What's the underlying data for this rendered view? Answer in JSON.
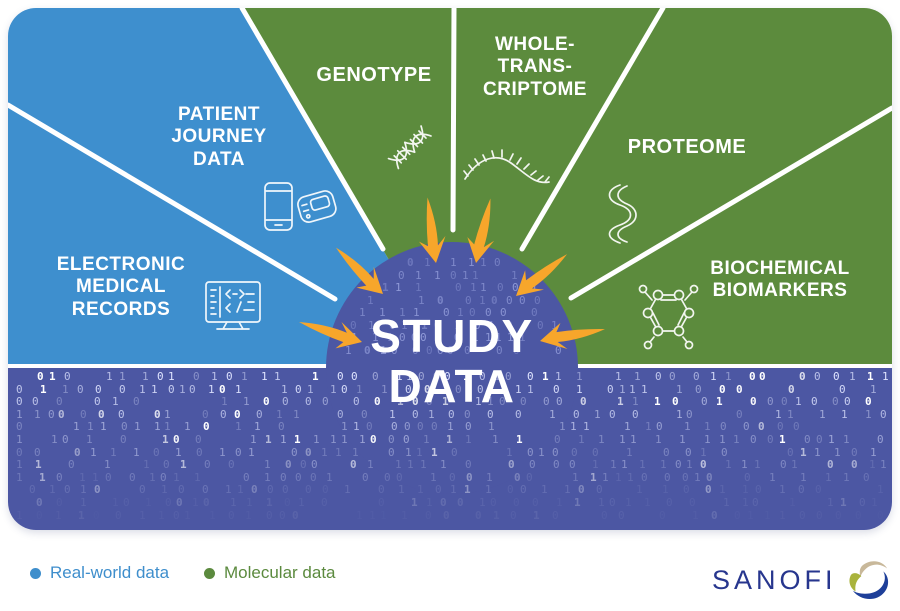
{
  "diagram": {
    "center_label": "STUDY\nDATA",
    "wedges": [
      {
        "id": "electronic-medical-records",
        "label": "ELECTRONIC\nMEDICAL\nRECORDS",
        "category": "real-world",
        "icon": "monitor-code-icon"
      },
      {
        "id": "patient-journey-data",
        "label": "PATIENT\nJOURNEY\nDATA",
        "category": "real-world",
        "icon": "mobile-devices-icon"
      },
      {
        "id": "genotype",
        "label": "GENOTYPE",
        "category": "molecular",
        "icon": "dna-icon"
      },
      {
        "id": "whole-transcriptome",
        "label": "WHOLE-\nTRANS-\nCRIPTOME",
        "category": "molecular",
        "icon": "rna-strand-icon"
      },
      {
        "id": "proteome",
        "label": "PROTEOME",
        "category": "molecular",
        "icon": "protein-ribbon-icon"
      },
      {
        "id": "biochemical-biomarkers",
        "label": "BIOCHEMICAL\nBIOMARKERS",
        "category": "molecular",
        "icon": "molecule-icon"
      }
    ],
    "colors": {
      "real_world_blue": "#3E8FCE",
      "molecular_green": "#5C8B3D",
      "data_purple": "#4C57A3",
      "arrow_orange": "#F7A62B",
      "divider_white": "#FFFFFF"
    }
  },
  "legend": {
    "items": [
      {
        "label": "Real-world data",
        "color": "#3E8ECC"
      },
      {
        "label": "Molecular data",
        "color": "#5B8A3E"
      }
    ]
  },
  "footer": {
    "brand": "SANOFI",
    "brand_color": "#27368E"
  }
}
